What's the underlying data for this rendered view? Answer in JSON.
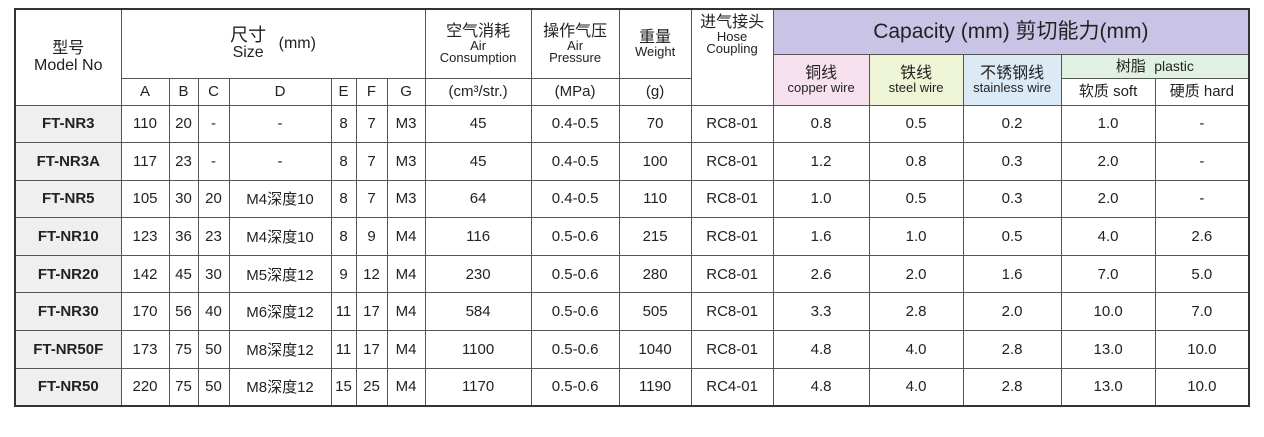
{
  "header": {
    "model": {
      "zh": "型号",
      "en": "Model No"
    },
    "size": {
      "zh": "尺寸",
      "en": "Size",
      "unit": "(mm)"
    },
    "dims": [
      "A",
      "B",
      "C",
      "D",
      "E",
      "F",
      "G"
    ],
    "air": {
      "zh": "空气消耗",
      "en1": "Air",
      "en2": "Consumption",
      "unit": "(cm³/str.)"
    },
    "pressure": {
      "zh": "操作气压",
      "en1": "Air",
      "en2": "Pressure",
      "unit": "(MPa)"
    },
    "weight": {
      "zh": "重量",
      "en": "Weight",
      "unit": "(g)"
    },
    "hose": {
      "zh": "进气接头",
      "en1": "Hose",
      "en2": "Coupling"
    },
    "capacity": "Capacity (mm) 剪切能力(mm)",
    "copper": {
      "zh": "铜线",
      "en": "copper wire"
    },
    "steel": {
      "zh": "铁线",
      "en": "steel wire"
    },
    "stainless": {
      "zh": "不锈钢线",
      "en": "stainless wire"
    },
    "plastic": {
      "zh": "树脂",
      "en": "plastic"
    },
    "soft": "软质 soft",
    "hard": "硬质 hard"
  },
  "table": {
    "rows": [
      [
        "FT-NR3",
        "110",
        "20",
        "-",
        "-",
        "8",
        "7",
        "M3",
        "45",
        "0.4-0.5",
        "70",
        "RC8-01",
        "0.8",
        "0.5",
        "0.2",
        "1.0",
        "-"
      ],
      [
        "FT-NR3A",
        "117",
        "23",
        "-",
        "-",
        "8",
        "7",
        "M3",
        "45",
        "0.4-0.5",
        "100",
        "RC8-01",
        "1.2",
        "0.8",
        "0.3",
        "2.0",
        "-"
      ],
      [
        "FT-NR5",
        "105",
        "30",
        "20",
        "M4深度10",
        "8",
        "7",
        "M3",
        "64",
        "0.4-0.5",
        "110",
        "RC8-01",
        "1.0",
        "0.5",
        "0.3",
        "2.0",
        "-"
      ],
      [
        "FT-NR10",
        "123",
        "36",
        "23",
        "M4深度10",
        "8",
        "9",
        "M4",
        "116",
        "0.5-0.6",
        "215",
        "RC8-01",
        "1.6",
        "1.0",
        "0.5",
        "4.0",
        "2.6"
      ],
      [
        "FT-NR20",
        "142",
        "45",
        "30",
        "M5深度12",
        "9",
        "12",
        "M4",
        "230",
        "0.5-0.6",
        "280",
        "RC8-01",
        "2.6",
        "2.0",
        "1.6",
        "7.0",
        "5.0"
      ],
      [
        "FT-NR30",
        "170",
        "56",
        "40",
        "M6深度12",
        "11",
        "17",
        "M4",
        "584",
        "0.5-0.6",
        "505",
        "RC8-01",
        "3.3",
        "2.8",
        "2.0",
        "10.0",
        "7.0"
      ],
      [
        "FT-NR50F",
        "173",
        "75",
        "50",
        "M8深度12",
        "11",
        "17",
        "M4",
        "1100",
        "0.5-0.6",
        "1040",
        "RC8-01",
        "4.8",
        "4.0",
        "2.8",
        "13.0",
        "10.0"
      ],
      [
        "FT-NR50",
        "220",
        "75",
        "50",
        "M8深度12",
        "15",
        "25",
        "M4",
        "1170",
        "0.5-0.6",
        "1190",
        "RC4-01",
        "4.8",
        "4.0",
        "2.8",
        "13.0",
        "10.0"
      ]
    ]
  }
}
